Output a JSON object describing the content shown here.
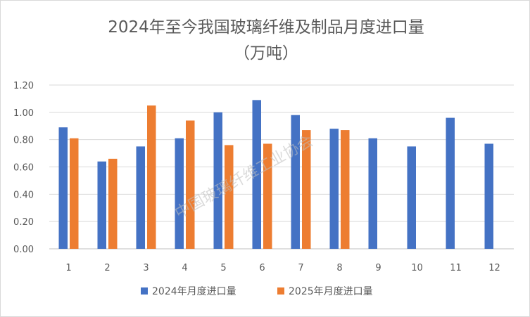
{
  "chart_data": {
    "type": "bar",
    "title": "2024年至今我国玻璃纤维及制品月度进口量",
    "subtitle": "（万吨）",
    "categories": [
      "1",
      "2",
      "3",
      "4",
      "5",
      "6",
      "7",
      "8",
      "9",
      "10",
      "11",
      "12"
    ],
    "series": [
      {
        "name": "2024年月度进口量",
        "color": "#4472C4",
        "values": [
          0.89,
          0.64,
          0.75,
          0.81,
          1.0,
          1.09,
          0.98,
          0.88,
          0.81,
          0.75,
          0.96,
          0.77
        ]
      },
      {
        "name": "2025年月度进口量",
        "color": "#ED7D31",
        "values": [
          0.81,
          0.66,
          1.05,
          0.94,
          0.76,
          0.77,
          0.87,
          0.87,
          null,
          null,
          null,
          null
        ]
      }
    ],
    "y_ticks": [
      "0.00",
      "0.20",
      "0.40",
      "0.60",
      "0.80",
      "1.00",
      "1.20"
    ],
    "ylim": [
      0,
      1.2
    ],
    "grid": true,
    "legend_position": "bottom",
    "watermark": "中国玻璃纤维工业协会"
  }
}
